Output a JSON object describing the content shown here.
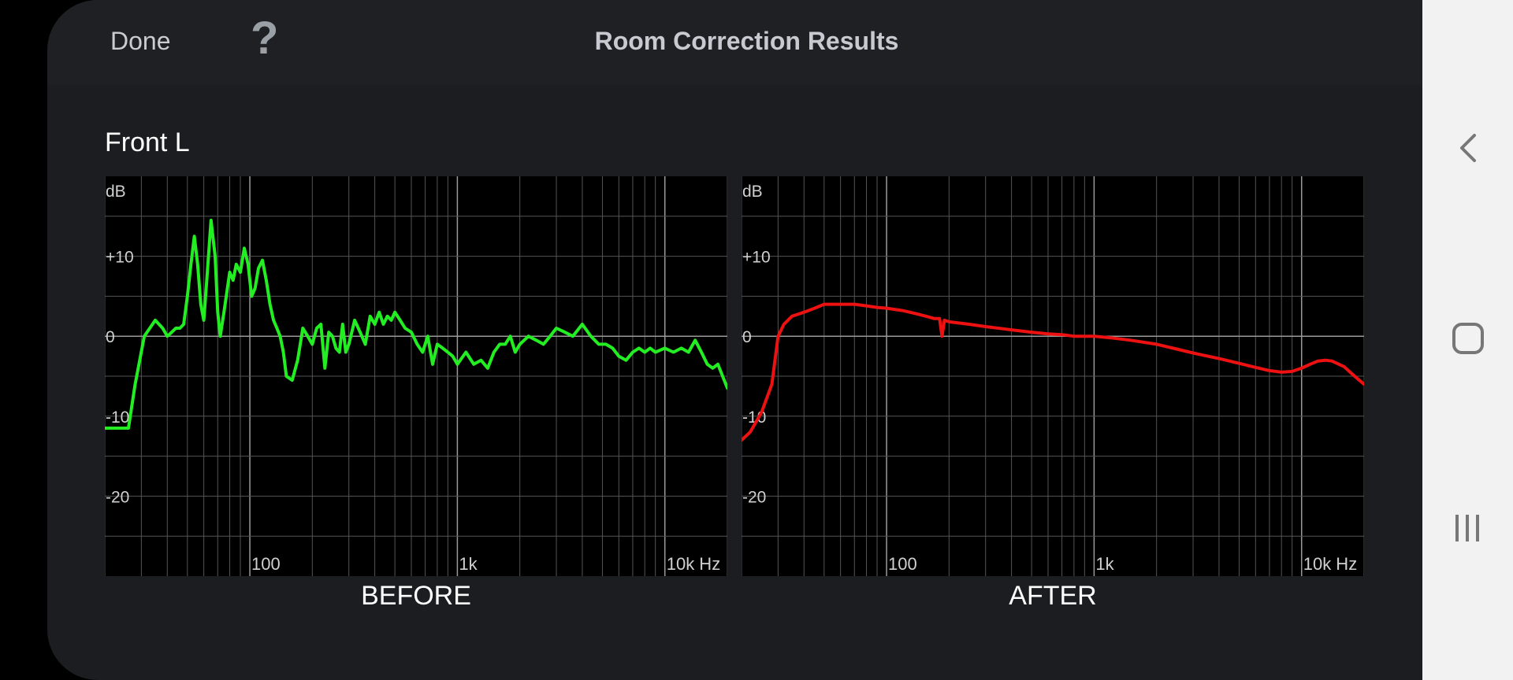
{
  "header": {
    "done_label": "Done",
    "help_label": "?",
    "title": "Room Correction Results"
  },
  "channel_label": "Front L",
  "icons": {
    "next": "chevron-right-icon",
    "nav_back": "chevron-left-icon",
    "nav_home": "rounded-square-icon",
    "nav_recents": "three-bars-icon"
  },
  "colors": {
    "before_line": "#22ee22",
    "after_line": "#ee1111",
    "chart_bg": "#000000",
    "grid": "#555555"
  },
  "chart_data": [
    {
      "type": "line",
      "caption": "BEFORE",
      "ylabel": "dB",
      "xlabel": "Hz",
      "x_scale": "log",
      "xlim": [
        20,
        20000
      ],
      "ylim": [
        -30,
        20
      ],
      "y_ticks": [
        "+10",
        "0",
        "-10",
        "-20"
      ],
      "x_ticks": [
        "100",
        "1k",
        "10k Hz"
      ],
      "color": "#22ee22",
      "x": [
        20,
        23,
        26,
        28,
        31,
        35,
        38,
        40,
        42,
        44,
        46,
        48,
        50,
        52,
        54,
        56,
        58,
        60,
        62,
        65,
        68,
        70,
        72,
        75,
        78,
        80,
        83,
        86,
        90,
        94,
        98,
        102,
        106,
        110,
        115,
        120,
        125,
        130,
        135,
        140,
        145,
        150,
        160,
        170,
        180,
        190,
        200,
        210,
        220,
        230,
        240,
        250,
        260,
        270,
        280,
        290,
        300,
        320,
        340,
        360,
        380,
        400,
        420,
        440,
        460,
        480,
        500,
        530,
        560,
        600,
        640,
        680,
        720,
        760,
        800,
        850,
        900,
        950,
        1000,
        1100,
        1200,
        1300,
        1400,
        1500,
        1600,
        1700,
        1800,
        1900,
        2000,
        2200,
        2400,
        2600,
        2800,
        3000,
        3300,
        3600,
        4000,
        4400,
        4800,
        5200,
        5600,
        6000,
        6500,
        7000,
        7500,
        8000,
        8500,
        9000,
        10000,
        11000,
        12000,
        13000,
        14000,
        15000,
        16000,
        17000,
        18000,
        20000
      ],
      "y": [
        -11.5,
        -11.5,
        -11.5,
        -6,
        0,
        2,
        1,
        0,
        0.5,
        1,
        1,
        1.5,
        5,
        9,
        12.5,
        9,
        4,
        2,
        7,
        14.5,
        10,
        3,
        0,
        3,
        6,
        8,
        7,
        9,
        8,
        11,
        9,
        5,
        6,
        8.5,
        9.5,
        7,
        4,
        2,
        1,
        0,
        -2,
        -5,
        -5.5,
        -3,
        1,
        0,
        -1,
        1,
        1.5,
        -4,
        0.5,
        0,
        -1.5,
        -2,
        1.5,
        -2,
        -1,
        2,
        0.5,
        -1,
        2.5,
        1.5,
        3,
        1.5,
        2.5,
        2,
        3,
        2,
        1,
        0.5,
        -1,
        -2,
        0,
        -3.5,
        -1,
        -1.5,
        -2,
        -2.5,
        -3.5,
        -2,
        -3.5,
        -3,
        -4,
        -2,
        -1,
        -1,
        0,
        -2,
        -1,
        0,
        -0.5,
        -1,
        0,
        1,
        0.5,
        0,
        1.5,
        0,
        -1,
        -1,
        -1.5,
        -2.5,
        -3,
        -2,
        -1.5,
        -2,
        -1.5,
        -2,
        -1.5,
        -2,
        -1.5,
        -2,
        -0.5,
        -2,
        -3.5,
        -4,
        -3.5,
        -6.5
      ]
    },
    {
      "type": "line",
      "caption": "AFTER",
      "ylabel": "dB",
      "xlabel": "Hz",
      "x_scale": "log",
      "xlim": [
        20,
        20000
      ],
      "ylim": [
        -30,
        20
      ],
      "y_ticks": [
        "+10",
        "0",
        "-10",
        "-20"
      ],
      "x_ticks": [
        "100",
        "1k",
        "10k Hz"
      ],
      "color": "#ee1111",
      "x": [
        20,
        22,
        25,
        28,
        30,
        32,
        35,
        40,
        45,
        50,
        55,
        60,
        65,
        70,
        80,
        90,
        100,
        120,
        140,
        160,
        170,
        180,
        185,
        190,
        200,
        250,
        300,
        400,
        500,
        600,
        700,
        800,
        1000,
        1200,
        1500,
        2000,
        2500,
        3000,
        4000,
        5000,
        6000,
        7000,
        8000,
        9000,
        10000,
        11000,
        12000,
        13000,
        14000,
        16000,
        18000,
        20000
      ],
      "y": [
        -13,
        -12,
        -9.5,
        -6,
        0,
        1.5,
        2.5,
        3,
        3.5,
        4,
        4,
        4,
        4,
        4,
        3.8,
        3.6,
        3.5,
        3.2,
        2.8,
        2.4,
        2.2,
        2.2,
        0,
        2,
        1.8,
        1.5,
        1.2,
        0.8,
        0.5,
        0.3,
        0.2,
        0,
        0,
        -0.2,
        -0.5,
        -1,
        -1.6,
        -2.1,
        -2.8,
        -3.4,
        -3.9,
        -4.3,
        -4.5,
        -4.4,
        -4.0,
        -3.5,
        -3.1,
        -3.0,
        -3.1,
        -3.8,
        -5.0,
        -6.0
      ]
    }
  ]
}
